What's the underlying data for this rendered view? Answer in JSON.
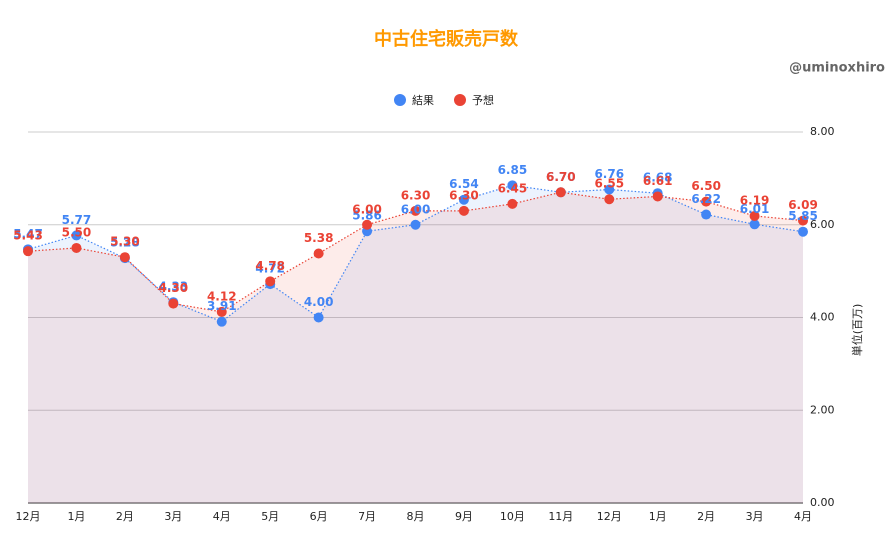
{
  "chart_data": {
    "type": "line",
    "title": "中古住宅販売戸数",
    "subtitle": "@uminoxhiro",
    "y_axis_label": "単位(百万)",
    "categories": [
      "12月",
      "1月",
      "2月",
      "3月",
      "4月",
      "5月",
      "6月",
      "7月",
      "8月",
      "9月",
      "10月",
      "11月",
      "12月",
      "1月",
      "2月",
      "3月",
      "4月"
    ],
    "series": [
      {
        "name": "結果",
        "color": "#4285f4",
        "values": [
          5.47,
          5.77,
          5.28,
          4.33,
          3.91,
          4.72,
          4.0,
          5.86,
          6.0,
          6.54,
          6.85,
          6.7,
          6.76,
          6.68,
          6.22,
          6.01,
          5.85
        ],
        "value_labels": [
          "5.47",
          "5.77",
          "5.28",
          "4.33",
          "3.91",
          "4.72",
          "4.00",
          "5.86",
          "6.00",
          "6.54",
          "6.85",
          "6.70",
          "6.76",
          "6.68",
          "6.22",
          "6.01",
          "5.85"
        ]
      },
      {
        "name": "予想",
        "color": "#ea4335",
        "values": [
          5.43,
          5.5,
          5.3,
          4.3,
          4.12,
          4.78,
          5.38,
          6.0,
          6.3,
          6.3,
          6.45,
          6.7,
          6.55,
          6.61,
          6.5,
          6.19,
          6.09
        ],
        "value_labels": [
          "5.43",
          "5.50",
          "5.30",
          "4.30",
          "4.12",
          "4.78",
          "5.38",
          "6.00",
          "6.30",
          "6.30",
          "6.45",
          "6.70",
          "6.55",
          "6.61",
          "6.50",
          "6.19",
          "6.09"
        ]
      }
    ],
    "ylim": [
      0,
      8
    ],
    "yticks": [
      {
        "value": 0,
        "label": "0.00"
      },
      {
        "value": 2,
        "label": "2.00"
      },
      {
        "value": 4,
        "label": "4.00"
      },
      {
        "value": 6,
        "label": "6.00"
      },
      {
        "value": 8,
        "label": "8.00"
      }
    ],
    "grid": true,
    "legend": "top"
  }
}
